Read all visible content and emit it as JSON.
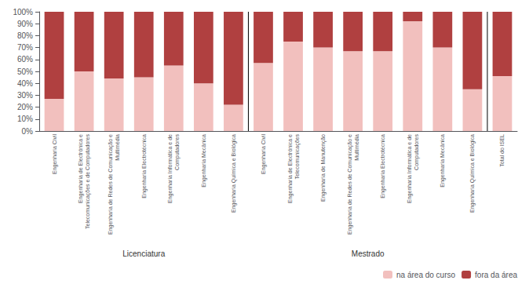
{
  "chart_data": {
    "type": "bar",
    "stacked": true,
    "categories": [
      "Engenharia Civil",
      "Engenharia de Electrónica e\nTelecomunicações e de Computadores",
      "Engenharia de Redes de Comunicação e\nMultimédia",
      "Engenharia Electrotécnica",
      "Engenharia Informática e de\nComputadores",
      "Engenharia Mecânica",
      "Engenharia Química e Biológica",
      "Engenharia Civil",
      "Engenharia de Electrónica e\nTelecomunicações",
      "Engenharia de Manutenção",
      "Engenharia de Redes de Comunicação e\nMultimédia",
      "Engenharia Electrotécnica",
      "Engenharia Informática e de\nComputadores",
      "Engenharia Mecânica",
      "Engenharia Química e Biológica",
      "Total do ISEL"
    ],
    "series": [
      {
        "name": "na área do curso",
        "color": "#f2c0be",
        "values": [
          27,
          50,
          44,
          45,
          55,
          40,
          22,
          57,
          75,
          70,
          67,
          67,
          92,
          70,
          35,
          46
        ]
      },
      {
        "name": "fora da área",
        "color": "#b04040",
        "values": [
          73,
          50,
          56,
          55,
          45,
          60,
          78,
          43,
          25,
          30,
          33,
          33,
          8,
          30,
          65,
          54
        ]
      }
    ],
    "groups": [
      {
        "name": "Licenciatura",
        "start": 0,
        "end": 6
      },
      {
        "name": "Mestrado",
        "start": 7,
        "end": 14
      }
    ],
    "ylim": [
      0,
      100
    ],
    "yticks": [
      {
        "value": 0,
        "label": "0%"
      },
      {
        "value": 10,
        "label": "10%"
      },
      {
        "value": 20,
        "label": "20%"
      },
      {
        "value": 30,
        "label": "30%"
      },
      {
        "value": 40,
        "label": "40%"
      },
      {
        "value": 50,
        "label": "50%"
      },
      {
        "value": 60,
        "label": "60%"
      },
      {
        "value": 70,
        "label": "70%"
      },
      {
        "value": 80,
        "label": "80%"
      },
      {
        "value": 90,
        "label": "90%"
      },
      {
        "value": 100,
        "label": "100%"
      }
    ],
    "grid": false,
    "legend": "lower right"
  }
}
